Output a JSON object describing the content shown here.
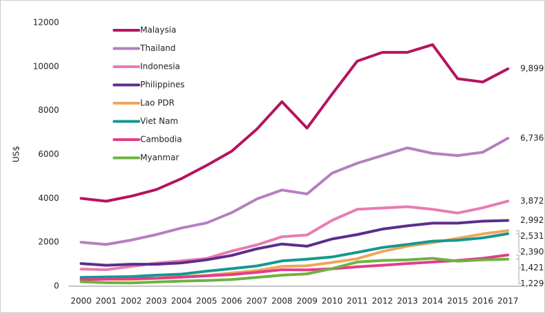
{
  "chart_data": {
    "type": "line",
    "y_label": "US$",
    "categories": [
      "2000",
      "2001",
      "2002",
      "2003",
      "2004",
      "2005",
      "2006",
      "2007",
      "2008",
      "2009",
      "2010",
      "2011",
      "2012",
      "2013",
      "2014",
      "2015",
      "2016",
      "2017"
    ],
    "ylim": [
      0,
      12000
    ],
    "yticks": [
      0,
      2000,
      4000,
      6000,
      8000,
      10000,
      12000
    ],
    "legend": "top-left",
    "series": [
      {
        "name": "Malaysia",
        "color": "#b5135f",
        "values": [
          4000,
          3870,
          4100,
          4400,
          4900,
          5500,
          6150,
          7150,
          8400,
          7200,
          8750,
          10250,
          10650,
          10650,
          11000,
          9450,
          9300,
          9899
        ],
        "value_labels": [
          null,
          null,
          null,
          null,
          null,
          null,
          null,
          null,
          null,
          null,
          null,
          null,
          null,
          null,
          null,
          null,
          null,
          "9,899"
        ]
      },
      {
        "name": "Thailand",
        "color": "#b57fc0",
        "values": [
          2000,
          1900,
          2100,
          2350,
          2650,
          2880,
          3350,
          3970,
          4380,
          4200,
          5150,
          5600,
          5950,
          6300,
          6050,
          5950,
          6100,
          6736
        ],
        "value_labels": [
          null,
          null,
          null,
          null,
          null,
          null,
          null,
          null,
          null,
          null,
          null,
          null,
          null,
          null,
          null,
          null,
          null,
          "6,736"
        ]
      },
      {
        "name": "Indonesia",
        "color": "#e97bb0",
        "values": [
          780,
          750,
          900,
          1050,
          1150,
          1260,
          1600,
          1880,
          2250,
          2330,
          3000,
          3500,
          3560,
          3620,
          3500,
          3330,
          3570,
          3872
        ],
        "value_labels": [
          null,
          null,
          null,
          null,
          null,
          null,
          null,
          null,
          null,
          null,
          null,
          null,
          null,
          null,
          null,
          null,
          null,
          "3,872"
        ]
      },
      {
        "name": "Philippines",
        "color": "#5b2d8e",
        "values": [
          1030,
          950,
          1000,
          1000,
          1060,
          1200,
          1400,
          1700,
          1920,
          1820,
          2150,
          2350,
          2600,
          2750,
          2870,
          2870,
          2960,
          2992
        ],
        "value_labels": [
          null,
          null,
          null,
          null,
          null,
          null,
          null,
          null,
          null,
          null,
          null,
          null,
          null,
          null,
          null,
          null,
          null,
          "2,992"
        ]
      },
      {
        "name": "Lao PDR",
        "color": "#f0a55a",
        "values": [
          320,
          320,
          310,
          360,
          440,
          490,
          600,
          710,
          900,
          930,
          1080,
          1250,
          1580,
          1820,
          1980,
          2180,
          2380,
          2531
        ],
        "value_labels": [
          null,
          null,
          null,
          null,
          null,
          null,
          null,
          null,
          null,
          null,
          null,
          null,
          null,
          null,
          null,
          null,
          null,
          "2,531"
        ]
      },
      {
        "name": "Viet Nam",
        "color": "#13998f",
        "values": [
          400,
          420,
          440,
          500,
          550,
          680,
          800,
          920,
          1150,
          1230,
          1330,
          1540,
          1760,
          1900,
          2050,
          2090,
          2200,
          2390
        ],
        "value_labels": [
          null,
          null,
          null,
          null,
          null,
          null,
          null,
          null,
          null,
          null,
          null,
          null,
          null,
          null,
          null,
          null,
          null,
          "2,390"
        ]
      },
      {
        "name": "Cambodia",
        "color": "#e23d8a",
        "values": [
          300,
          320,
          340,
          360,
          410,
          470,
          530,
          630,
          750,
          740,
          790,
          880,
          950,
          1030,
          1100,
          1170,
          1270,
          1421
        ],
        "value_labels": [
          null,
          null,
          null,
          null,
          null,
          null,
          null,
          null,
          null,
          null,
          null,
          null,
          null,
          null,
          null,
          null,
          null,
          "1,421"
        ]
      },
      {
        "name": "Myanmar",
        "color": "#6db33f",
        "values": [
          200,
          160,
          150,
          190,
          230,
          260,
          300,
          400,
          500,
          560,
          800,
          1100,
          1170,
          1200,
          1270,
          1140,
          1200,
          1229
        ],
        "value_labels": [
          null,
          null,
          null,
          null,
          null,
          null,
          null,
          null,
          null,
          null,
          null,
          null,
          null,
          null,
          null,
          null,
          null,
          "1,229"
        ]
      }
    ]
  }
}
